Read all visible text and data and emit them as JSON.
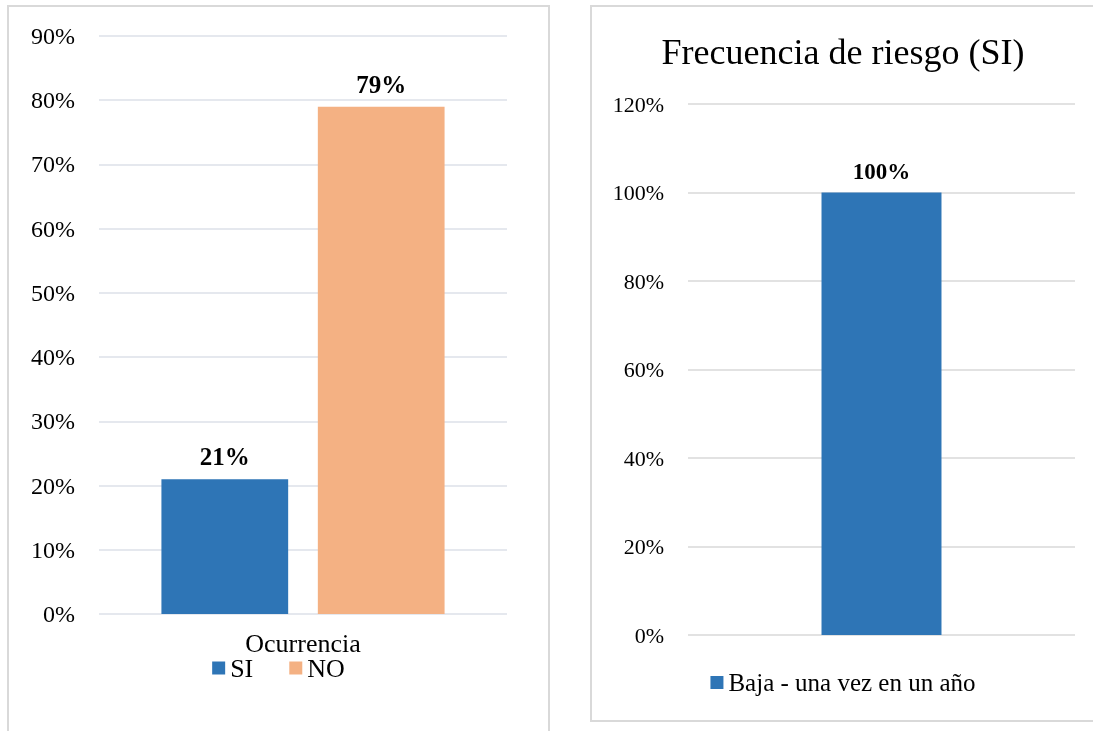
{
  "chart_data": [
    {
      "type": "bar",
      "categories": [
        "Ocurrencia"
      ],
      "series": [
        {
          "name": "SI",
          "color": "#2e75b6",
          "values": [
            21
          ],
          "value_labels": [
            "21%"
          ]
        },
        {
          "name": "NO",
          "color": "#f4b183",
          "values": [
            79
          ],
          "value_labels": [
            "79%"
          ]
        }
      ],
      "ylim": [
        0,
        90
      ],
      "yticks": [
        {
          "value": 0,
          "label": "0%"
        },
        {
          "value": 10,
          "label": "10%"
        },
        {
          "value": 20,
          "label": "20%"
        },
        {
          "value": 30,
          "label": "30%"
        },
        {
          "value": 40,
          "label": "40%"
        },
        {
          "value": 50,
          "label": "50%"
        },
        {
          "value": 60,
          "label": "60%"
        },
        {
          "value": 70,
          "label": "70%"
        },
        {
          "value": 80,
          "label": "80%"
        },
        {
          "value": 90,
          "label": "90%"
        }
      ],
      "grid": "y",
      "legend": "bottom"
    },
    {
      "type": "bar",
      "title": "Frecuencia de riesgo (SI)",
      "categories": [
        null
      ],
      "series": [
        {
          "name": "Baja - una vez en un año",
          "color": "#2e75b6",
          "values": [
            100
          ],
          "value_labels": [
            "100%"
          ]
        }
      ],
      "ylim": [
        0,
        120
      ],
      "yticks": [
        {
          "value": 0,
          "label": "0%"
        },
        {
          "value": 20,
          "label": "20%"
        },
        {
          "value": 40,
          "label": "40%"
        },
        {
          "value": 60,
          "label": "60%"
        },
        {
          "value": 80,
          "label": "80%"
        },
        {
          "value": 100,
          "label": "100%"
        },
        {
          "value": 120,
          "label": "120%"
        }
      ],
      "grid": "y",
      "legend": "bottom"
    }
  ]
}
